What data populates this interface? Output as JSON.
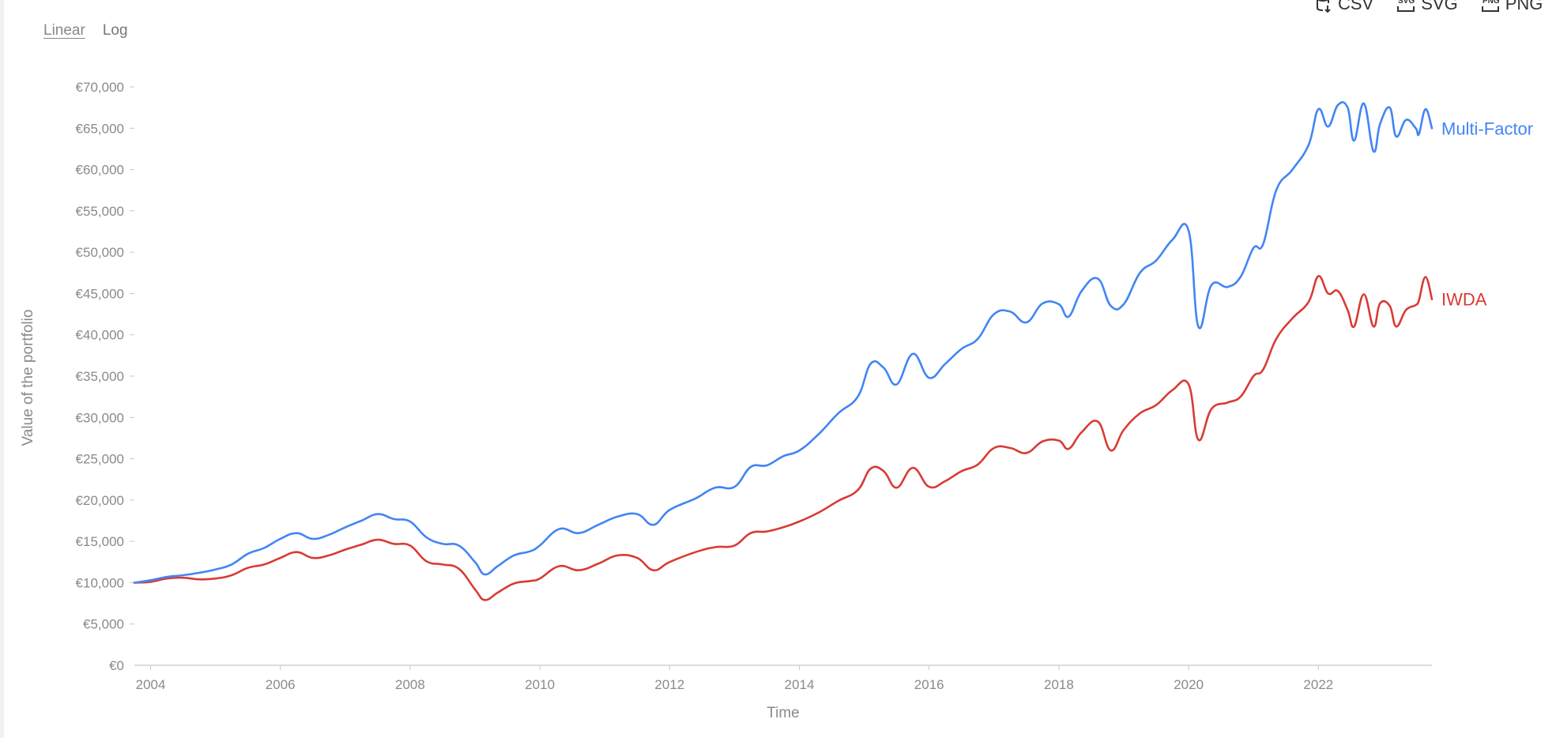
{
  "scale_toggle": {
    "linear": "Linear",
    "log": "Log",
    "active": "Linear"
  },
  "export": {
    "csv": "CSV",
    "svg": "SVG",
    "png": "PNG"
  },
  "colors": {
    "multi_factor": "#4285f4",
    "iwda": "#d93b34",
    "axis": "#d0d0d0",
    "text": "#8a8a8a"
  },
  "chart_data": {
    "type": "line",
    "xlabel": "Time",
    "ylabel": "Value of the portfolio",
    "ylim": [
      0,
      70000
    ],
    "xlim": [
      2003.75,
      2023.75
    ],
    "y_ticks": [
      0,
      5000,
      10000,
      15000,
      20000,
      25000,
      30000,
      35000,
      40000,
      45000,
      50000,
      55000,
      60000,
      65000,
      70000
    ],
    "y_tick_labels": [
      "€0",
      "€5,000",
      "€10,000",
      "€15,000",
      "€20,000",
      "€25,000",
      "€30,000",
      "€35,000",
      "€40,000",
      "€45,000",
      "€50,000",
      "€55,000",
      "€60,000",
      "€65,000",
      "€70,000"
    ],
    "x_ticks": [
      2004,
      2006,
      2008,
      2010,
      2012,
      2014,
      2016,
      2018,
      2020,
      2022
    ],
    "x_tick_labels": [
      "2004",
      "2006",
      "2008",
      "2010",
      "2012",
      "2014",
      "2016",
      "2018",
      "2020",
      "2022"
    ],
    "series": [
      {
        "name": "Multi-Factor",
        "color": "#4285f4",
        "points": [
          [
            2003.75,
            10000
          ],
          [
            2004.0,
            10300
          ],
          [
            2004.25,
            10700
          ],
          [
            2004.5,
            10900
          ],
          [
            2004.75,
            11200
          ],
          [
            2005.0,
            11600
          ],
          [
            2005.25,
            12200
          ],
          [
            2005.5,
            13500
          ],
          [
            2005.75,
            14200
          ],
          [
            2006.0,
            15300
          ],
          [
            2006.25,
            16000
          ],
          [
            2006.5,
            15300
          ],
          [
            2006.75,
            15800
          ],
          [
            2007.0,
            16700
          ],
          [
            2007.25,
            17500
          ],
          [
            2007.5,
            18300
          ],
          [
            2007.75,
            17700
          ],
          [
            2008.0,
            17400
          ],
          [
            2008.25,
            15500
          ],
          [
            2008.5,
            14700
          ],
          [
            2008.75,
            14500
          ],
          [
            2009.0,
            12500
          ],
          [
            2009.15,
            11000
          ],
          [
            2009.35,
            12000
          ],
          [
            2009.6,
            13300
          ],
          [
            2009.85,
            13800
          ],
          [
            2010.0,
            14500
          ],
          [
            2010.3,
            16500
          ],
          [
            2010.6,
            16000
          ],
          [
            2010.9,
            17000
          ],
          [
            2011.2,
            18000
          ],
          [
            2011.5,
            18300
          ],
          [
            2011.75,
            17000
          ],
          [
            2012.0,
            18800
          ],
          [
            2012.4,
            20200
          ],
          [
            2012.7,
            21500
          ],
          [
            2013.0,
            21600
          ],
          [
            2013.25,
            24000
          ],
          [
            2013.5,
            24200
          ],
          [
            2013.75,
            25300
          ],
          [
            2014.0,
            26000
          ],
          [
            2014.3,
            28000
          ],
          [
            2014.6,
            30500
          ],
          [
            2014.9,
            32500
          ],
          [
            2015.1,
            36500
          ],
          [
            2015.3,
            36000
          ],
          [
            2015.5,
            34000
          ],
          [
            2015.75,
            37700
          ],
          [
            2016.0,
            34800
          ],
          [
            2016.25,
            36500
          ],
          [
            2016.5,
            38300
          ],
          [
            2016.75,
            39500
          ],
          [
            2017.0,
            42500
          ],
          [
            2017.25,
            42800
          ],
          [
            2017.5,
            41500
          ],
          [
            2017.75,
            43800
          ],
          [
            2018.0,
            43700
          ],
          [
            2018.15,
            42200
          ],
          [
            2018.35,
            45300
          ],
          [
            2018.6,
            46800
          ],
          [
            2018.8,
            43500
          ],
          [
            2019.0,
            43700
          ],
          [
            2019.25,
            47500
          ],
          [
            2019.5,
            49000
          ],
          [
            2019.75,
            51500
          ],
          [
            2020.0,
            52600
          ],
          [
            2020.15,
            41000
          ],
          [
            2020.35,
            46000
          ],
          [
            2020.6,
            45800
          ],
          [
            2020.8,
            47000
          ],
          [
            2021.0,
            50500
          ],
          [
            2021.15,
            51000
          ],
          [
            2021.35,
            57500
          ],
          [
            2021.6,
            60000
          ],
          [
            2021.85,
            63000
          ],
          [
            2022.0,
            67300
          ],
          [
            2022.15,
            65200
          ],
          [
            2022.3,
            67800
          ],
          [
            2022.45,
            67500
          ],
          [
            2022.55,
            63500
          ],
          [
            2022.7,
            68000
          ],
          [
            2022.85,
            62200
          ],
          [
            2022.95,
            65500
          ],
          [
            2023.1,
            67500
          ],
          [
            2023.2,
            64000
          ],
          [
            2023.35,
            66000
          ],
          [
            2023.5,
            65000
          ],
          [
            2023.55,
            64300
          ],
          [
            2023.65,
            67300
          ],
          [
            2023.75,
            65000
          ]
        ]
      },
      {
        "name": "IWDA",
        "color": "#d93b34",
        "points": [
          [
            2003.75,
            10000
          ],
          [
            2004.0,
            10100
          ],
          [
            2004.25,
            10500
          ],
          [
            2004.5,
            10600
          ],
          [
            2004.75,
            10400
          ],
          [
            2005.0,
            10500
          ],
          [
            2005.25,
            10900
          ],
          [
            2005.5,
            11800
          ],
          [
            2005.75,
            12200
          ],
          [
            2006.0,
            13000
          ],
          [
            2006.25,
            13700
          ],
          [
            2006.5,
            13000
          ],
          [
            2006.75,
            13300
          ],
          [
            2007.0,
            14000
          ],
          [
            2007.25,
            14600
          ],
          [
            2007.5,
            15200
          ],
          [
            2007.75,
            14700
          ],
          [
            2008.0,
            14500
          ],
          [
            2008.25,
            12600
          ],
          [
            2008.5,
            12200
          ],
          [
            2008.75,
            11700
          ],
          [
            2009.0,
            9200
          ],
          [
            2009.15,
            7900
          ],
          [
            2009.35,
            8800
          ],
          [
            2009.6,
            9900
          ],
          [
            2009.85,
            10200
          ],
          [
            2010.0,
            10500
          ],
          [
            2010.3,
            12000
          ],
          [
            2010.6,
            11500
          ],
          [
            2010.9,
            12300
          ],
          [
            2011.2,
            13300
          ],
          [
            2011.5,
            13000
          ],
          [
            2011.75,
            11500
          ],
          [
            2012.0,
            12500
          ],
          [
            2012.4,
            13700
          ],
          [
            2012.7,
            14300
          ],
          [
            2013.0,
            14500
          ],
          [
            2013.25,
            16000
          ],
          [
            2013.5,
            16200
          ],
          [
            2013.75,
            16700
          ],
          [
            2014.0,
            17400
          ],
          [
            2014.3,
            18500
          ],
          [
            2014.6,
            19900
          ],
          [
            2014.9,
            21200
          ],
          [
            2015.1,
            23800
          ],
          [
            2015.3,
            23500
          ],
          [
            2015.5,
            21500
          ],
          [
            2015.75,
            23900
          ],
          [
            2016.0,
            21600
          ],
          [
            2016.25,
            22300
          ],
          [
            2016.5,
            23500
          ],
          [
            2016.75,
            24300
          ],
          [
            2017.0,
            26300
          ],
          [
            2017.25,
            26300
          ],
          [
            2017.5,
            25700
          ],
          [
            2017.75,
            27100
          ],
          [
            2018.0,
            27200
          ],
          [
            2018.15,
            26200
          ],
          [
            2018.35,
            28200
          ],
          [
            2018.6,
            29500
          ],
          [
            2018.8,
            26000
          ],
          [
            2019.0,
            28500
          ],
          [
            2019.25,
            30500
          ],
          [
            2019.5,
            31500
          ],
          [
            2019.75,
            33300
          ],
          [
            2020.0,
            34000
          ],
          [
            2020.15,
            27300
          ],
          [
            2020.35,
            31000
          ],
          [
            2020.6,
            31800
          ],
          [
            2020.8,
            32500
          ],
          [
            2021.0,
            35000
          ],
          [
            2021.15,
            35800
          ],
          [
            2021.35,
            39500
          ],
          [
            2021.6,
            42000
          ],
          [
            2021.85,
            44000
          ],
          [
            2022.0,
            47100
          ],
          [
            2022.15,
            45000
          ],
          [
            2022.3,
            45300
          ],
          [
            2022.45,
            43000
          ],
          [
            2022.55,
            41000
          ],
          [
            2022.7,
            44900
          ],
          [
            2022.85,
            41000
          ],
          [
            2022.95,
            43800
          ],
          [
            2023.1,
            43500
          ],
          [
            2023.2,
            41000
          ],
          [
            2023.35,
            43000
          ],
          [
            2023.5,
            43600
          ],
          [
            2023.55,
            44200
          ],
          [
            2023.65,
            47000
          ],
          [
            2023.75,
            44300
          ]
        ]
      }
    ]
  }
}
